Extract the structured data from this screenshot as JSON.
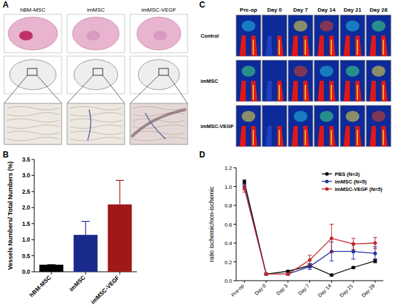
{
  "panels": {
    "labels": [
      "A",
      "B",
      "C",
      "D"
    ]
  },
  "histology": {
    "columns": [
      "hBM-MSC",
      "imMSC",
      "imMSC-VEGF"
    ]
  },
  "perfusion_images": {
    "columns": [
      "Pre-op",
      "Day 0",
      "Day 7",
      "Day 14",
      "Day 21",
      "Day 28"
    ],
    "rows": [
      "Control",
      "imMSC",
      "imMSC-VEGF"
    ]
  },
  "chart_data": [
    {
      "type": "bar",
      "y_label": "Vessels Numbers/ Total Numbers (%)",
      "categories": [
        "hBM-MSC",
        "imMSC",
        "imMSC-VEGF"
      ],
      "values": [
        0.22,
        1.15,
        2.1
      ],
      "errors": [
        0,
        0.42,
        0.75
      ],
      "colors": [
        "#000000",
        "#1a2a8c",
        "#a01818"
      ],
      "ylim": [
        0,
        3.5
      ],
      "yticks": [
        {
          "value": 0,
          "label": "0.0"
        },
        {
          "value": 0.5,
          "label": "0.5"
        },
        {
          "value": 1,
          "label": "1.0"
        },
        {
          "value": 1.5,
          "label": "1.5"
        },
        {
          "value": 2,
          "label": "2.0"
        },
        {
          "value": 2.5,
          "label": "2.5"
        },
        {
          "value": 3,
          "label": "3.0"
        },
        {
          "value": 3.5,
          "label": "3.5"
        }
      ]
    },
    {
      "type": "line",
      "y_label": "ratio ischemic/non-ischemic",
      "categories": [
        "Pre-op",
        "Day 0",
        "Day 3",
        "Day 7",
        "Day 14",
        "Day 21",
        "Day 28"
      ],
      "series": [
        {
          "name": "PBS (N=3)",
          "color": "#000000",
          "marker": "circle",
          "values": [
            1.05,
            0.07,
            0.1,
            0.16,
            0.06,
            0.14,
            0.21
          ],
          "errors": [
            0.02,
            0.01,
            0.01,
            0.02,
            0.01,
            0.01,
            0.02
          ]
        },
        {
          "name": "imMSC (N=5)",
          "color": "#2030a0",
          "marker": "circle",
          "values": [
            1.0,
            0.07,
            0.07,
            0.15,
            0.31,
            0.31,
            0.29
          ],
          "errors": [
            0.03,
            0.01,
            0.01,
            0.03,
            0.1,
            0.08,
            0.07
          ]
        },
        {
          "name": "imMSC-VEGF (N=5)",
          "color": "#c0282a",
          "marker": "circle",
          "values": [
            0.98,
            0.07,
            0.07,
            0.22,
            0.45,
            0.39,
            0.4
          ],
          "errors": [
            0.04,
            0.01,
            0.01,
            0.05,
            0.15,
            0.06,
            0.06
          ]
        }
      ],
      "legend": "top-right",
      "ylim": [
        0,
        1.2
      ],
      "yticks": [
        {
          "value": 0,
          "label": "0.0"
        },
        {
          "value": 0.2,
          "label": "0.2"
        },
        {
          "value": 0.4,
          "label": "0.4"
        },
        {
          "value": 0.6,
          "label": "0.6"
        },
        {
          "value": 0.8,
          "label": "0.8"
        },
        {
          "value": 1,
          "label": "1.0"
        },
        {
          "value": 1.2,
          "label": "1.2"
        }
      ]
    }
  ]
}
